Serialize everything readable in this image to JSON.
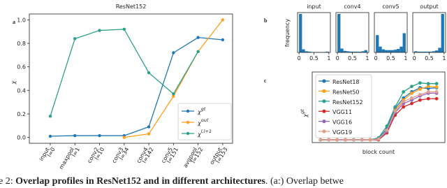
{
  "caption": {
    "prefix": "e 2: ",
    "bold": "Overlap profiles in ResNet152 and in different architectures",
    "rest": ". (a:) Overlap betwe"
  },
  "chart_data": [
    {
      "type": "line",
      "panel_label": "a",
      "title": "ResNet152",
      "ylabel": "χ",
      "categories": [
        "input",
        "maxpool",
        "conv2",
        "conv3",
        "conv4",
        "conv5",
        "avgpool",
        "output"
      ],
      "layer_labels": [
        "l=0",
        "l=1",
        "l=10",
        "l=34",
        "l=142",
        "l=151",
        "l=152",
        "l=153"
      ],
      "ylim": [
        -0.05,
        1.05
      ],
      "yticks": [
        {
          "value": 0,
          "label": "0.0"
        },
        0.2,
        0.4,
        0.6,
        0.8,
        {
          "value": 1,
          "label": "1.0"
        }
      ],
      "series": [
        {
          "name": "χgt",
          "color": "#1f77b4",
          "values": [
            0.01,
            0.015,
            0.015,
            0.015,
            0.09,
            0.72,
            0.85,
            0.83
          ]
        },
        {
          "name": "χout",
          "color": "#ff9e1b",
          "values": [
            null,
            null,
            null,
            0.0,
            0.03,
            0.35,
            0.73,
            1.0
          ]
        },
        {
          "name": "χl,l+1",
          "color": "#2ca089",
          "values": [
            0.18,
            0.84,
            0.91,
            0.92,
            0.55,
            0.37,
            0.73,
            null
          ]
        }
      ]
    },
    {
      "type": "histogram",
      "panel_label": "b",
      "ylabel": "frequency",
      "title": "input",
      "color": "#1f77b4",
      "bins": [
        0,
        0.1,
        0.2,
        0.3,
        0.4,
        0.5,
        0.6,
        0.7,
        0.8,
        0.9,
        1
      ],
      "values": [
        100,
        8,
        3,
        2,
        1,
        1,
        1,
        1,
        1,
        2
      ],
      "xlim": [
        -0.05,
        1.05
      ],
      "xticks": [
        0,
        0.5,
        1
      ],
      "ylim": [
        0,
        100
      ]
    },
    {
      "type": "histogram",
      "title": "conv4",
      "color": "#1f77b4",
      "bins": [
        0,
        0.1,
        0.2,
        0.3,
        0.4,
        0.5,
        0.6,
        0.7,
        0.8,
        0.9,
        1
      ],
      "values": [
        100,
        10,
        4,
        3,
        2,
        2,
        2,
        2,
        3,
        6
      ],
      "xlim": [
        -0.05,
        1.05
      ],
      "xticks": [
        0,
        0.5,
        1
      ],
      "ylim": [
        0,
        100
      ]
    },
    {
      "type": "histogram",
      "title": "conv5",
      "color": "#1f77b4",
      "bins": [
        0,
        0.1,
        0.2,
        0.3,
        0.4,
        0.5,
        0.6,
        0.7,
        0.8,
        0.9,
        1
      ],
      "values": [
        45,
        15,
        8,
        6,
        6,
        6,
        7,
        9,
        15,
        50
      ],
      "xlim": [
        -0.05,
        1.05
      ],
      "xticks": [
        0,
        0.5,
        1
      ],
      "ylim": [
        0,
        100
      ]
    },
    {
      "type": "histogram",
      "title": "output",
      "color": "#1f77b4",
      "bins": [
        0,
        0.1,
        0.2,
        0.3,
        0.4,
        0.5,
        0.6,
        0.7,
        0.8,
        0.9,
        1
      ],
      "values": [
        3,
        2,
        2,
        2,
        2,
        2,
        3,
        5,
        12,
        100
      ],
      "xlim": [
        -0.05,
        1.05
      ],
      "xticks": [
        0,
        0.5,
        1
      ],
      "ylim": [
        0,
        100
      ]
    },
    {
      "type": "line",
      "panel_label": "c",
      "ylabel": "χgt",
      "xlabel": "block count",
      "x": [
        1,
        2,
        3,
        4,
        5,
        6,
        7,
        8,
        9,
        10,
        11,
        12,
        13,
        14,
        15
      ],
      "xlim": [
        0,
        16
      ],
      "ylim": [
        0,
        1
      ],
      "series": [
        {
          "name": "ResNet18",
          "color": "#1f77b4",
          "values": [
            0.02,
            0.02,
            0.02,
            0.02,
            0.02,
            0.02,
            0.02,
            0.04,
            0.18,
            0.48,
            0.63,
            0.72,
            0.78,
            0.77,
            0.78
          ]
        },
        {
          "name": "ResNet50",
          "color": "#ff9e1b",
          "values": [
            0.02,
            0.02,
            0.02,
            0.02,
            0.02,
            0.02,
            0.02,
            0.03,
            0.15,
            0.45,
            0.6,
            0.7,
            0.76,
            0.8,
            0.79
          ]
        },
        {
          "name": "ResNet152",
          "color": "#2ca089",
          "values": [
            0.02,
            0.02,
            0.02,
            0.02,
            0.02,
            0.02,
            0.02,
            0.05,
            0.22,
            0.5,
            0.72,
            0.8,
            0.85,
            0.84,
            0.84
          ]
        },
        {
          "name": "VGG11",
          "color": "#d62728",
          "values": [
            0.02,
            0.02,
            0.02,
            0.02,
            0.02,
            0.02,
            0.02,
            0.02,
            0.12,
            0.38,
            0.5,
            0.55,
            0.6,
            0.62,
            0.62
          ]
        },
        {
          "name": "VGG16",
          "color": "#9467bd",
          "values": [
            0.02,
            0.02,
            0.02,
            0.02,
            0.02,
            0.02,
            0.02,
            0.03,
            0.14,
            0.42,
            0.55,
            0.6,
            0.66,
            0.7,
            0.7
          ]
        },
        {
          "name": "VGG19",
          "color": "#e0a090",
          "values": [
            0.02,
            0.02,
            0.02,
            0.02,
            0.02,
            0.02,
            0.02,
            0.03,
            0.16,
            0.44,
            0.58,
            0.63,
            0.68,
            0.72,
            0.72
          ]
        }
      ]
    }
  ]
}
